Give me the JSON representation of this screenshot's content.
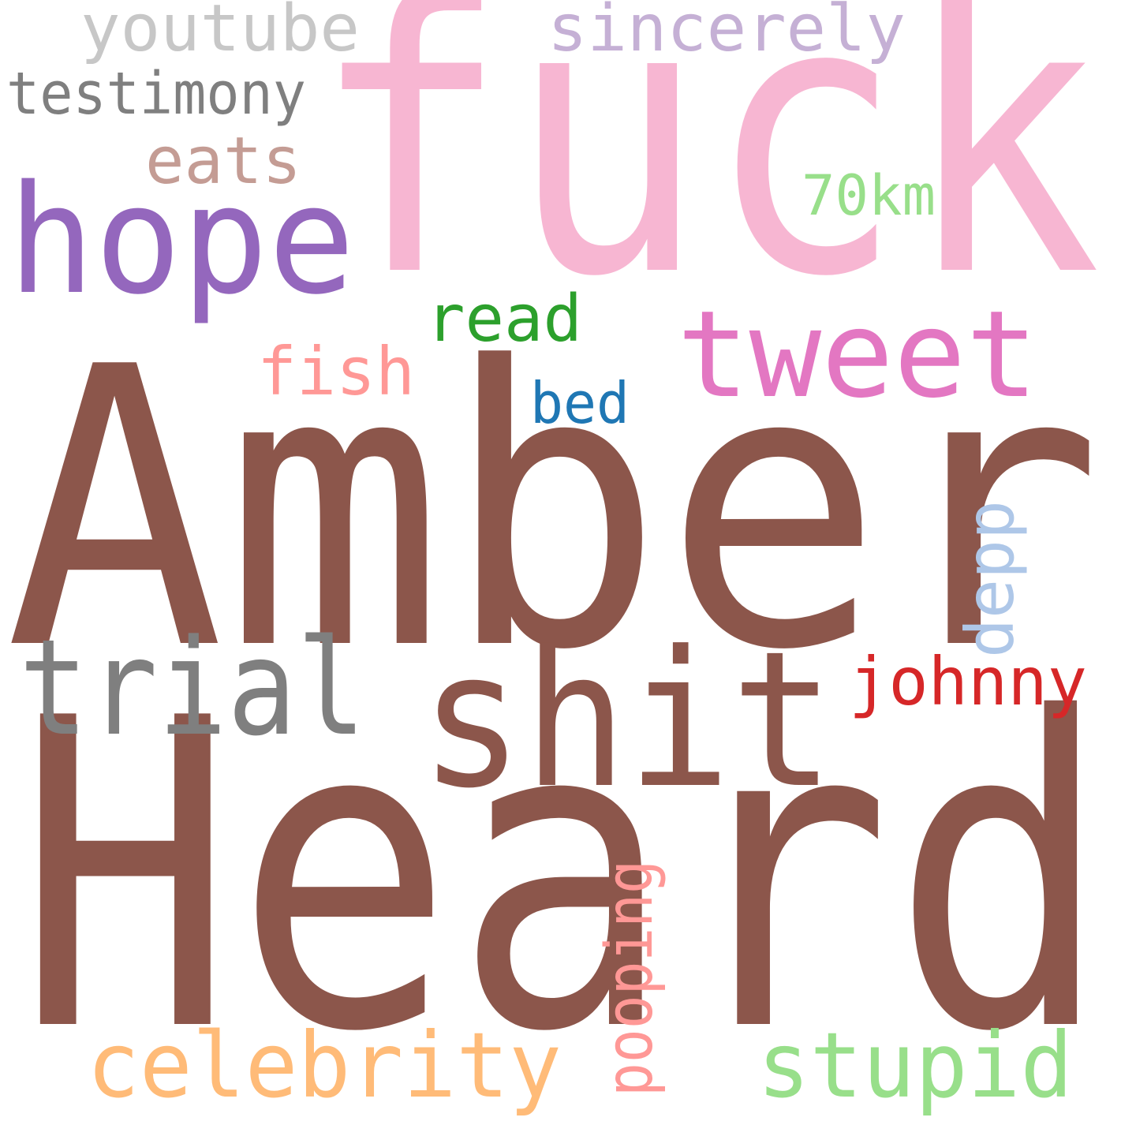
{
  "cloud": {
    "background": "#ffffff",
    "words": [
      {
        "text": "Heard",
        "color": "#8c564b",
        "rotated": false
      },
      {
        "text": "Amber",
        "color": "#8c564b",
        "rotated": false
      },
      {
        "text": "fuck",
        "color": "#f7b6d2",
        "rotated": false
      },
      {
        "text": "shit",
        "color": "#8c564b",
        "rotated": false
      },
      {
        "text": "trial",
        "color": "#7f7f7f",
        "rotated": false
      },
      {
        "text": "hope",
        "color": "#9467bd",
        "rotated": false
      },
      {
        "text": "tweet",
        "color": "#e377c2",
        "rotated": false
      },
      {
        "text": "celebrity",
        "color": "#ffbb78",
        "rotated": false
      },
      {
        "text": "stupid",
        "color": "#98df8a",
        "rotated": false
      },
      {
        "text": "sincerely",
        "color": "#c5b0d5",
        "rotated": false
      },
      {
        "text": "youtube",
        "color": "#c7c7c7",
        "rotated": false
      },
      {
        "text": "testimony",
        "color": "#7f7f7f",
        "rotated": false
      },
      {
        "text": "johnny",
        "color": "#d62728",
        "rotated": false
      },
      {
        "text": "pooping",
        "color": "#ff9896",
        "rotated": true
      },
      {
        "text": "depp",
        "color": "#aec7e8",
        "rotated": true
      },
      {
        "text": "read",
        "color": "#2ca02c",
        "rotated": false
      },
      {
        "text": "fish",
        "color": "#ff9896",
        "rotated": false
      },
      {
        "text": "eats",
        "color": "#c49c94",
        "rotated": false
      },
      {
        "text": "bed",
        "color": "#1f77b4",
        "rotated": false
      },
      {
        "text": "70km",
        "color": "#98df8a",
        "rotated": false
      }
    ]
  }
}
